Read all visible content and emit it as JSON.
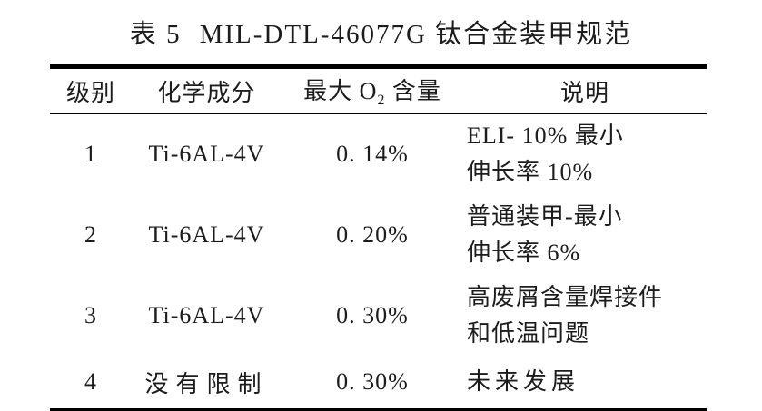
{
  "page": {
    "background": "#ffffff",
    "text_color": "#1c1c1c",
    "rule_color": "#000000"
  },
  "caption": {
    "label": "表 5",
    "title": "MIL-DTL-46077G 钛合金装甲规范"
  },
  "table": {
    "columns": {
      "grade": "级别",
      "composition": "化学成分",
      "oxygen": {
        "pre": "最大 O",
        "sub": "2",
        "post": " 含量"
      },
      "description": "说明"
    },
    "rows": [
      {
        "grade": "1",
        "composition": "Ti-6AL-4V",
        "max_o2": "0. 14%",
        "desc_lines": [
          "ELI- 10% 最小",
          "伸长率 10%"
        ]
      },
      {
        "grade": "2",
        "composition": "Ti-6AL-4V",
        "max_o2": "0. 20%",
        "desc_lines": [
          "普通装甲-最小",
          "伸长率 6%"
        ]
      },
      {
        "grade": "3",
        "composition": "Ti-6AL-4V",
        "max_o2": "0. 30%",
        "desc_lines": [
          "高废屑含量焊接件",
          "和低温问题"
        ]
      },
      {
        "grade": "4",
        "composition": "没有限制",
        "max_o2": "0. 30%",
        "desc_lines": [
          "未来发展"
        ]
      }
    ]
  }
}
